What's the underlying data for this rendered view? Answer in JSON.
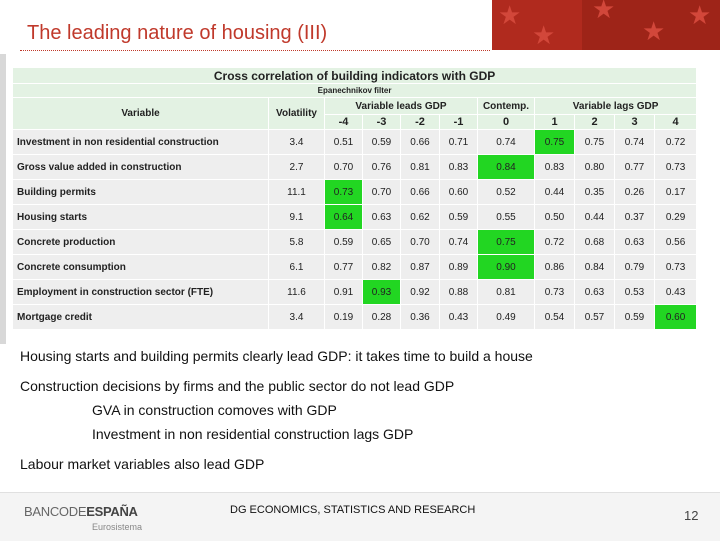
{
  "slide": {
    "title": "The leading nature of housing (III)",
    "page_number": "12",
    "footer": "DG ECONOMICS, STATISTICS AND RESEARCH",
    "logo_text_left": "BANCODE",
    "logo_text_right": "ESPAÑA",
    "logo_sub": "Eurosistema"
  },
  "table": {
    "title": "Cross correlation of building indicators with GDP",
    "subtitle": "Epanechnikov filter",
    "col_variable": "Variable",
    "col_volatility": "Volatility",
    "group_leads": "Variable leads GDP",
    "group_contemp": "Contemp.",
    "group_lags": "Variable lags GDP",
    "lags": [
      "-4",
      "-3",
      "-2",
      "-1",
      "0",
      "1",
      "2",
      "3",
      "4"
    ],
    "rows": [
      {
        "variable": "Investment in non residential construction",
        "volatility": "3.4",
        "values": [
          "0.51",
          "0.59",
          "0.66",
          "0.71",
          "0.74",
          "0.75",
          "0.75",
          "0.74",
          "0.72"
        ],
        "highlight": 5
      },
      {
        "variable": "Gross value added in construction",
        "volatility": "2.7",
        "values": [
          "0.70",
          "0.76",
          "0.81",
          "0.83",
          "0.84",
          "0.83",
          "0.80",
          "0.77",
          "0.73"
        ],
        "highlight": 4
      },
      {
        "variable": "Building permits",
        "volatility": "11.1",
        "values": [
          "0.73",
          "0.70",
          "0.66",
          "0.60",
          "0.52",
          "0.44",
          "0.35",
          "0.26",
          "0.17"
        ],
        "highlight": 0
      },
      {
        "variable": "Housing starts",
        "volatility": "9.1",
        "values": [
          "0.64",
          "0.63",
          "0.62",
          "0.59",
          "0.55",
          "0.50",
          "0.44",
          "0.37",
          "0.29"
        ],
        "highlight": 0
      },
      {
        "variable": "Concrete production",
        "volatility": "5.8",
        "values": [
          "0.59",
          "0.65",
          "0.70",
          "0.74",
          "0.75",
          "0.72",
          "0.68",
          "0.63",
          "0.56"
        ],
        "highlight": 4
      },
      {
        "variable": "Concrete consumption",
        "volatility": "6.1",
        "values": [
          "0.77",
          "0.82",
          "0.87",
          "0.89",
          "0.90",
          "0.86",
          "0.84",
          "0.79",
          "0.73"
        ],
        "highlight": 4
      },
      {
        "variable": "Employment in construction sector (FTE)",
        "volatility": "11.6",
        "values": [
          "0.91",
          "0.93",
          "0.92",
          "0.88",
          "0.81",
          "0.73",
          "0.63",
          "0.53",
          "0.43"
        ],
        "highlight": 1
      },
      {
        "variable": "Mortgage credit",
        "volatility": "3.4",
        "values": [
          "0.19",
          "0.28",
          "0.36",
          "0.43",
          "0.49",
          "0.54",
          "0.57",
          "0.59",
          "0.60"
        ],
        "highlight": 8
      }
    ]
  },
  "bullets": [
    "Housing starts and building permits clearly lead GDP: it takes time to build a house",
    "Construction decisions by firms and the public sector do not lead GDP",
    "GVA in construction comoves with GDP",
    "Investment in non residential construction lags GDP",
    "Labour market variables also lead GDP"
  ],
  "colors": {
    "title": "#c0392b",
    "highlight": "#22d622",
    "header_bg": "#e3f2e3",
    "cell_bg": "#eeeeee"
  }
}
